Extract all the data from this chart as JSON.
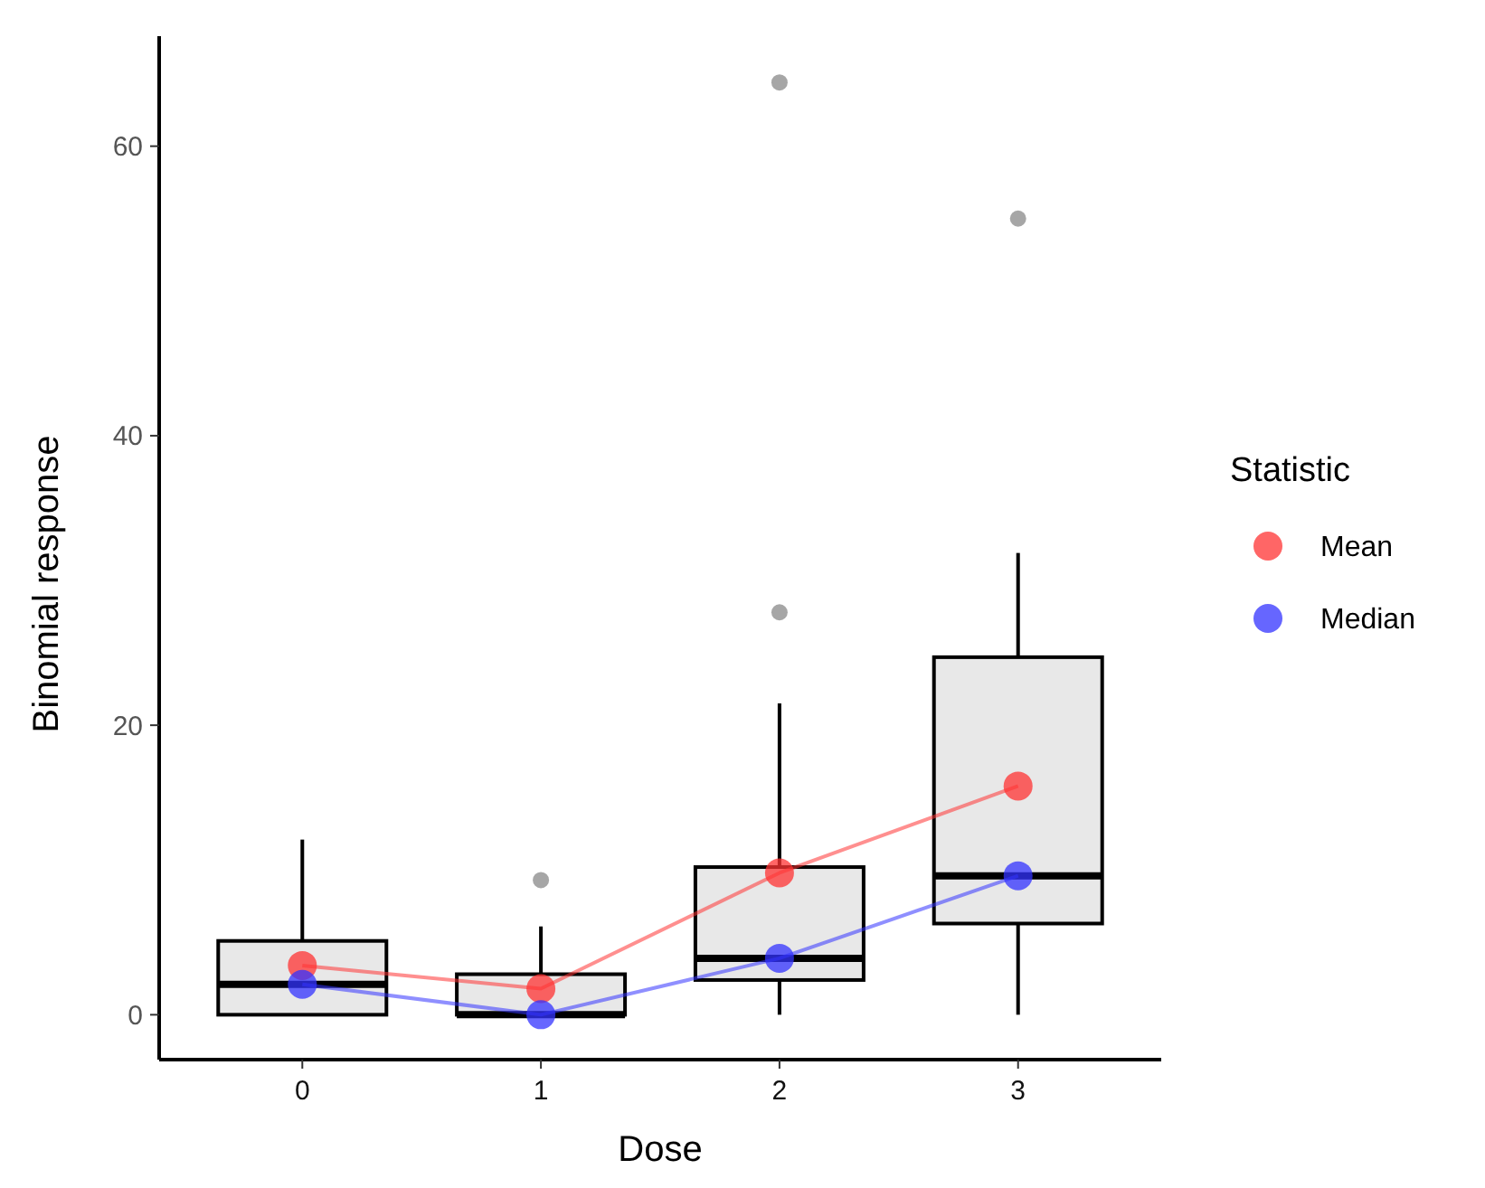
{
  "chart_data": {
    "type": "box",
    "xlabel": "Dose",
    "ylabel": "Binomial response",
    "legend_title": "Statistic",
    "legend": "right",
    "marker": "circle",
    "categories": [
      "0",
      "1",
      "2",
      "3"
    ],
    "ylim": [
      -3.1,
      67.6
    ],
    "yticks": [
      0,
      20,
      40,
      60
    ],
    "series": [
      {
        "color": "#e8e8e8",
        "boxes": [
          {
            "low": 0,
            "q1": 0,
            "median": 2.1,
            "q3": 5.1,
            "high": 12.1
          },
          {
            "low": 0,
            "q1": 0,
            "median": 0,
            "q3": 2.8,
            "high": 6.1,
            "outliers": [
              9.3
            ]
          },
          {
            "low": 0,
            "q1": 2.4,
            "median": 3.9,
            "q3": 10.2,
            "high": 21.5,
            "outliers": [
              27.8,
              64.4
            ]
          },
          {
            "low": 0,
            "q1": 6.3,
            "median": 9.6,
            "q3": 24.7,
            "high": 31.9,
            "outliers": [
              55.0
            ]
          }
        ]
      },
      {
        "type": "line",
        "name": "Mean",
        "color": "#ff3333",
        "values": [
          3.4,
          1.8,
          9.8,
          15.8
        ]
      },
      {
        "type": "line",
        "name": "Median",
        "color": "#3333ff",
        "values": [
          2.1,
          0,
          3.9,
          9.6
        ]
      }
    ]
  }
}
